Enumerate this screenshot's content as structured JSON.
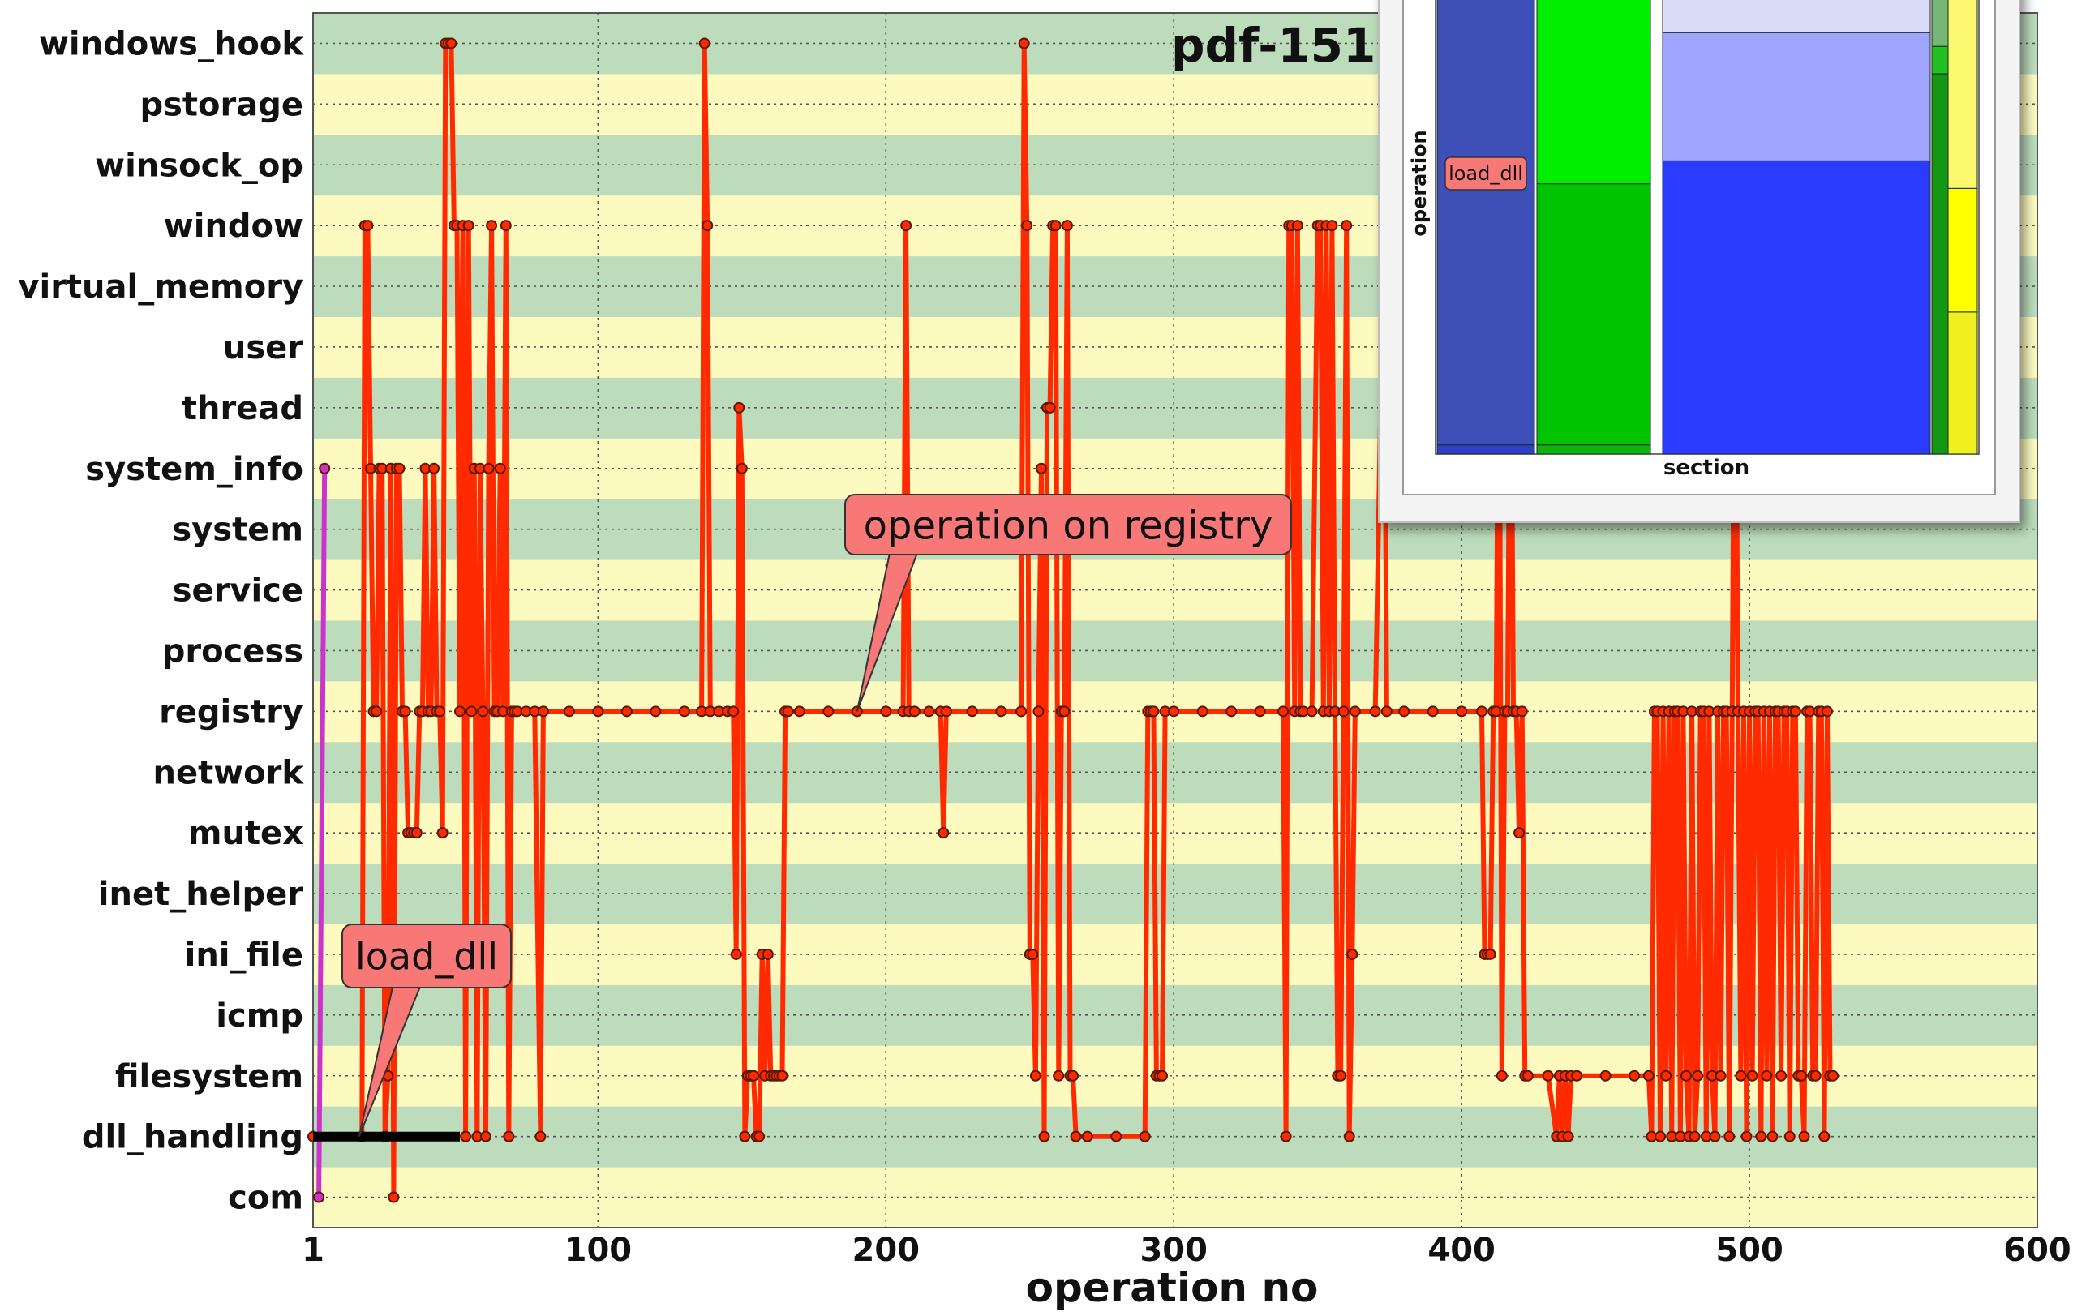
{
  "chart_data": {
    "type": "line",
    "title": "pdf-151",
    "xlabel": "operation no",
    "ylabel": "",
    "xlim": [
      1,
      600
    ],
    "x_ticks": [
      "1",
      "100",
      "200",
      "300",
      "400",
      "500",
      "600"
    ],
    "categories": [
      "com",
      "dll_handling",
      "filesystem",
      "icmp",
      "ini_file",
      "inet_helper",
      "mutex",
      "network",
      "registry",
      "process",
      "service",
      "system",
      "system_info",
      "thread",
      "user",
      "virtual_memory",
      "window",
      "winsock_op",
      "pstorage",
      "windows_hook"
    ],
    "grid": true,
    "band_colors": [
      "#fdfac0",
      "#bcdcbc"
    ],
    "series": [
      {
        "color": "#ff2a00",
        "points": [
          [
            1,
            1
          ],
          [
            18,
            1
          ],
          [
            19,
            16
          ],
          [
            20,
            16
          ],
          [
            21,
            12
          ],
          [
            22,
            8
          ],
          [
            23,
            8
          ],
          [
            24,
            12
          ],
          [
            25,
            12
          ],
          [
            26,
            1
          ],
          [
            27,
            2
          ],
          [
            28,
            12
          ],
          [
            29,
            0
          ],
          [
            30,
            12
          ],
          [
            31,
            12
          ],
          [
            32,
            8
          ],
          [
            33,
            8
          ],
          [
            34,
            6
          ],
          [
            35,
            6
          ],
          [
            36,
            6
          ],
          [
            37,
            6
          ],
          [
            38,
            8
          ],
          [
            39,
            8
          ],
          [
            40,
            12
          ],
          [
            41,
            8
          ],
          [
            42,
            8
          ],
          [
            43,
            12
          ],
          [
            44,
            8
          ],
          [
            45,
            8
          ],
          [
            46,
            6
          ],
          [
            47,
            19
          ],
          [
            48,
            19
          ],
          [
            49,
            19
          ],
          [
            50,
            16
          ],
          [
            51,
            16
          ],
          [
            52,
            8
          ],
          [
            53,
            16
          ],
          [
            54,
            1
          ],
          [
            55,
            16
          ],
          [
            56,
            8
          ],
          [
            57,
            12
          ],
          [
            58,
            1
          ],
          [
            59,
            12
          ],
          [
            60,
            8
          ],
          [
            61,
            1
          ],
          [
            62,
            12
          ],
          [
            63,
            16
          ],
          [
            64,
            8
          ],
          [
            65,
            8
          ],
          [
            66,
            12
          ],
          [
            67,
            8
          ],
          [
            68,
            16
          ],
          [
            69,
            1
          ],
          [
            70,
            8
          ],
          [
            71,
            8
          ],
          [
            72,
            8
          ],
          [
            75,
            8
          ],
          [
            78,
            8
          ],
          [
            80,
            1
          ],
          [
            81,
            8
          ],
          [
            90,
            8
          ],
          [
            100,
            8
          ],
          [
            110,
            8
          ],
          [
            120,
            8
          ],
          [
            130,
            8
          ],
          [
            136,
            8
          ],
          [
            137,
            19
          ],
          [
            138,
            16
          ],
          [
            139,
            8
          ],
          [
            142,
            8
          ],
          [
            145,
            8
          ],
          [
            147,
            8
          ],
          [
            148,
            4
          ],
          [
            149,
            13
          ],
          [
            150,
            12
          ],
          [
            151,
            1
          ],
          [
            152,
            2
          ],
          [
            153,
            2
          ],
          [
            154,
            2
          ],
          [
            155,
            1
          ],
          [
            156,
            1
          ],
          [
            157,
            4
          ],
          [
            158,
            2
          ],
          [
            159,
            4
          ],
          [
            160,
            2
          ],
          [
            161,
            2
          ],
          [
            162,
            2
          ],
          [
            163,
            2
          ],
          [
            164,
            2
          ],
          [
            165,
            8
          ],
          [
            166,
            8
          ],
          [
            170,
            8
          ],
          [
            180,
            8
          ],
          [
            190,
            8
          ],
          [
            200,
            8
          ],
          [
            206,
            8
          ],
          [
            207,
            16
          ],
          [
            208,
            8
          ],
          [
            210,
            8
          ],
          [
            215,
            8
          ],
          [
            219,
            8
          ],
          [
            220,
            6
          ],
          [
            221,
            8
          ],
          [
            230,
            8
          ],
          [
            240,
            8
          ],
          [
            247,
            8
          ],
          [
            248,
            19
          ],
          [
            249,
            16
          ],
          [
            250,
            4
          ],
          [
            251,
            4
          ],
          [
            252,
            2
          ],
          [
            253,
            8
          ],
          [
            254,
            12
          ],
          [
            255,
            1
          ],
          [
            256,
            13
          ],
          [
            257,
            13
          ],
          [
            258,
            16
          ],
          [
            259,
            16
          ],
          [
            260,
            2
          ],
          [
            261,
            8
          ],
          [
            262,
            8
          ],
          [
            263,
            16
          ],
          [
            264,
            2
          ],
          [
            265,
            2
          ],
          [
            266,
            1
          ],
          [
            270,
            1
          ],
          [
            280,
            1
          ],
          [
            290,
            1
          ],
          [
            291,
            8
          ],
          [
            292,
            8
          ],
          [
            293,
            8
          ],
          [
            294,
            2
          ],
          [
            295,
            2
          ],
          [
            296,
            2
          ],
          [
            297,
            8
          ],
          [
            300,
            8
          ],
          [
            310,
            8
          ],
          [
            320,
            8
          ],
          [
            330,
            8
          ],
          [
            338,
            8
          ],
          [
            339,
            1
          ],
          [
            340,
            16
          ],
          [
            341,
            16
          ],
          [
            342,
            8
          ],
          [
            343,
            16
          ],
          [
            344,
            8
          ],
          [
            345,
            8
          ],
          [
            348,
            8
          ],
          [
            350,
            16
          ],
          [
            351,
            16
          ],
          [
            352,
            8
          ],
          [
            353,
            16
          ],
          [
            354,
            8
          ],
          [
            355,
            16
          ],
          [
            356,
            8
          ],
          [
            357,
            2
          ],
          [
            358,
            2
          ],
          [
            359,
            8
          ],
          [
            360,
            16
          ],
          [
            361,
            1
          ],
          [
            362,
            4
          ],
          [
            363,
            8
          ],
          [
            370,
            8
          ],
          [
            373,
            16
          ],
          [
            374,
            8
          ],
          [
            380,
            8
          ],
          [
            390,
            8
          ],
          [
            400,
            8
          ],
          [
            407,
            8
          ],
          [
            408,
            4
          ],
          [
            409,
            4
          ],
          [
            410,
            4
          ],
          [
            411,
            8
          ],
          [
            412,
            8
          ],
          [
            413,
            16
          ],
          [
            414,
            2
          ],
          [
            415,
            8
          ],
          [
            416,
            8
          ],
          [
            417,
            16
          ],
          [
            418,
            8
          ],
          [
            419,
            8
          ],
          [
            420,
            6
          ],
          [
            421,
            8
          ],
          [
            422,
            2
          ],
          [
            423,
            2
          ],
          [
            430,
            2
          ],
          [
            433,
            1
          ],
          [
            434,
            2
          ],
          [
            435,
            1
          ],
          [
            436,
            2
          ],
          [
            437,
            1
          ],
          [
            438,
            2
          ],
          [
            440,
            2
          ],
          [
            450,
            2
          ],
          [
            460,
            2
          ],
          [
            465,
            2
          ],
          [
            466,
            1
          ],
          [
            467,
            8
          ],
          [
            468,
            8
          ],
          [
            469,
            1
          ],
          [
            470,
            8
          ],
          [
            471,
            2
          ],
          [
            472,
            8
          ],
          [
            473,
            1
          ],
          [
            474,
            8
          ],
          [
            475,
            8
          ],
          [
            476,
            1
          ],
          [
            477,
            8
          ],
          [
            478,
            2
          ],
          [
            479,
            1
          ],
          [
            480,
            8
          ],
          [
            481,
            1
          ],
          [
            482,
            2
          ],
          [
            483,
            8
          ],
          [
            484,
            8
          ],
          [
            485,
            1
          ],
          [
            486,
            8
          ],
          [
            487,
            2
          ],
          [
            488,
            1
          ],
          [
            489,
            8
          ],
          [
            490,
            2
          ],
          [
            491,
            8
          ],
          [
            492,
            8
          ],
          [
            493,
            1
          ],
          [
            494,
            8
          ],
          [
            495,
            17
          ],
          [
            496,
            8
          ],
          [
            497,
            2
          ],
          [
            498,
            8
          ],
          [
            499,
            1
          ],
          [
            500,
            8
          ],
          [
            501,
            2
          ],
          [
            502,
            8
          ],
          [
            503,
            8
          ],
          [
            504,
            1
          ],
          [
            505,
            8
          ],
          [
            506,
            2
          ],
          [
            507,
            8
          ],
          [
            508,
            1
          ],
          [
            509,
            8
          ],
          [
            510,
            8
          ],
          [
            511,
            2
          ],
          [
            512,
            8
          ],
          [
            513,
            8
          ],
          [
            514,
            1
          ],
          [
            515,
            8
          ],
          [
            516,
            8
          ],
          [
            517,
            2
          ],
          [
            518,
            2
          ],
          [
            519,
            1
          ],
          [
            520,
            8
          ],
          [
            521,
            8
          ],
          [
            522,
            2
          ],
          [
            523,
            2
          ],
          [
            524,
            8
          ],
          [
            525,
            8
          ],
          [
            526,
            1
          ],
          [
            527,
            8
          ],
          [
            528,
            2
          ],
          [
            529,
            2
          ]
        ]
      },
      {
        "color": "#cc33cc",
        "points": [
          [
            3,
            0
          ],
          [
            5,
            12
          ]
        ]
      },
      {
        "color": "#000000",
        "points": [
          [
            1,
            1
          ],
          [
            52,
            1
          ]
        ]
      }
    ],
    "annotations": [
      {
        "text": "load_dll",
        "x": 17,
        "y": 1
      },
      {
        "text": "operation on registry",
        "x": 190,
        "y": 8
      }
    ]
  },
  "inset": {
    "xlabel": "section",
    "ylabel": "operation",
    "label": "load_dll",
    "columns": [
      {
        "segments": [
          {
            "share": 0.02,
            "color": "#2f3fc9"
          },
          {
            "share": 0.98,
            "color": "#3e4fb8"
          }
        ]
      },
      {
        "segments": [
          {
            "share": 0.02,
            "color": "#0fb50f"
          },
          {
            "share": 0.57,
            "color": "#00c400"
          },
          {
            "share": 0.41,
            "color": "#00ee00"
          }
        ]
      },
      {
        "segments": [
          {
            "share": 0.64,
            "color": "#2a3cff"
          },
          {
            "share": 0.28,
            "color": "#9fa5ff"
          },
          {
            "share": 0.08,
            "color": "#dadcf8"
          }
        ]
      },
      {
        "segments": [
          {
            "share": 0.83,
            "color": "#149814"
          },
          {
            "share": 0.06,
            "color": "#22c022"
          },
          {
            "share": 0.11,
            "color": "#77b677"
          }
        ]
      },
      {
        "segments": [
          {
            "share": 0.31,
            "color": "#f0f020"
          },
          {
            "share": 0.27,
            "color": "#ffff00"
          },
          {
            "share": 0.42,
            "color": "#fbf870"
          }
        ]
      }
    ]
  }
}
